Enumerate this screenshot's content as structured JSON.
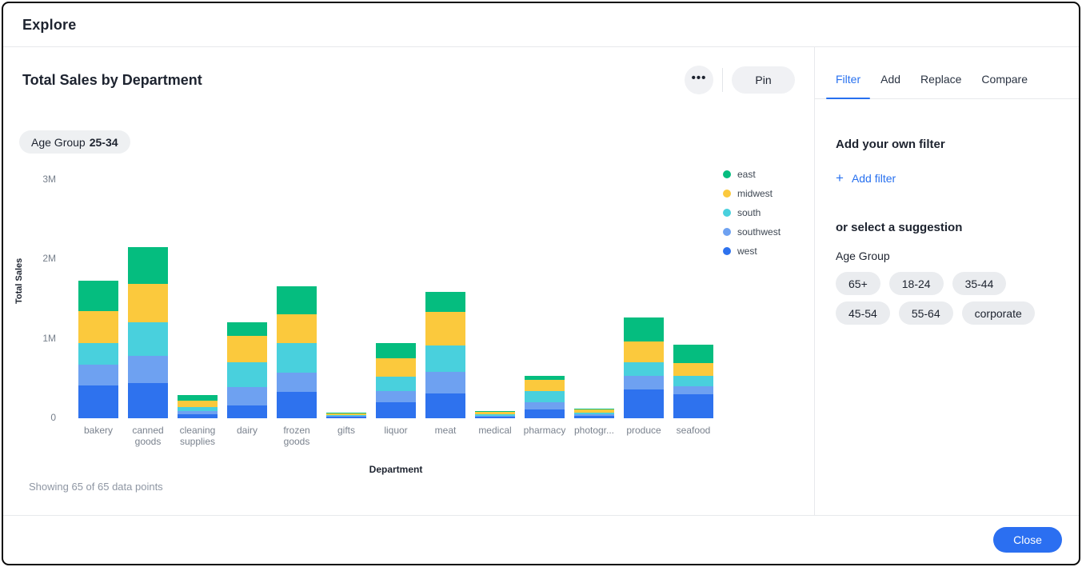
{
  "window": {
    "title": "Explore"
  },
  "chart_panel": {
    "title": "Total Sales by Department",
    "more_button_glyph": "•••",
    "pin_label": "Pin",
    "filter_chip": {
      "label": "Age Group",
      "value": "25-34"
    },
    "footnote": "Showing 65 of 65 data points"
  },
  "chart_data": {
    "type": "bar",
    "stacked": true,
    "title": "Total Sales by Department",
    "xlabel": "Department",
    "ylabel": "Total Sales",
    "ylim_millions": [
      0,
      3
    ],
    "y_ticks": [
      {
        "label": "3M",
        "value": 3
      },
      {
        "label": "2M",
        "value": 2
      },
      {
        "label": "1M",
        "value": 1
      },
      {
        "label": "0",
        "value": 0
      }
    ],
    "grid": false,
    "legend_position": "right",
    "stack_order_bottom_to_top": [
      "west",
      "southwest",
      "south",
      "midwest",
      "east"
    ],
    "categories": [
      "bakery",
      "canned goods",
      "cleaning supplies",
      "dairy",
      "frozen goods",
      "gifts",
      "liquor",
      "meat",
      "medical",
      "pharmacy",
      "photogr...",
      "produce",
      "seafood"
    ],
    "series": [
      {
        "name": "east",
        "color": "#05bd7f",
        "values_millions": [
          0.38,
          0.46,
          0.07,
          0.17,
          0.35,
          0.015,
          0.19,
          0.25,
          0.012,
          0.05,
          0.012,
          0.3,
          0.23
        ]
      },
      {
        "name": "midwest",
        "color": "#fbc93d",
        "values_millions": [
          0.4,
          0.48,
          0.08,
          0.33,
          0.36,
          0.016,
          0.23,
          0.42,
          0.034,
          0.14,
          0.04,
          0.26,
          0.16
        ]
      },
      {
        "name": "south",
        "color": "#49d0dd",
        "values_millions": [
          0.27,
          0.42,
          0.05,
          0.31,
          0.37,
          0.012,
          0.18,
          0.33,
          0.016,
          0.14,
          0.022,
          0.17,
          0.13
        ]
      },
      {
        "name": "southwest",
        "color": "#6ea1f1",
        "values_millions": [
          0.26,
          0.34,
          0.04,
          0.23,
          0.24,
          0.012,
          0.14,
          0.27,
          0.014,
          0.09,
          0.022,
          0.17,
          0.1
        ]
      },
      {
        "name": "west",
        "color": "#2e72ee",
        "values_millions": [
          0.41,
          0.44,
          0.05,
          0.16,
          0.33,
          0.018,
          0.2,
          0.31,
          0.023,
          0.11,
          0.03,
          0.36,
          0.3
        ]
      }
    ]
  },
  "right_panel": {
    "tabs": [
      {
        "label": "Filter",
        "active": true
      },
      {
        "label": "Add",
        "active": false
      },
      {
        "label": "Replace",
        "active": false
      },
      {
        "label": "Compare",
        "active": false
      }
    ],
    "own_filter_heading": "Add your own filter",
    "plus_icon": "+",
    "add_filter_label": "Add filter",
    "suggestion_heading": "or select a suggestion",
    "suggestion_group_label": "Age Group",
    "suggestions": [
      "65+",
      "18-24",
      "35-44",
      "45-54",
      "55-64",
      "corporate"
    ]
  },
  "footer": {
    "close_label": "Close"
  }
}
